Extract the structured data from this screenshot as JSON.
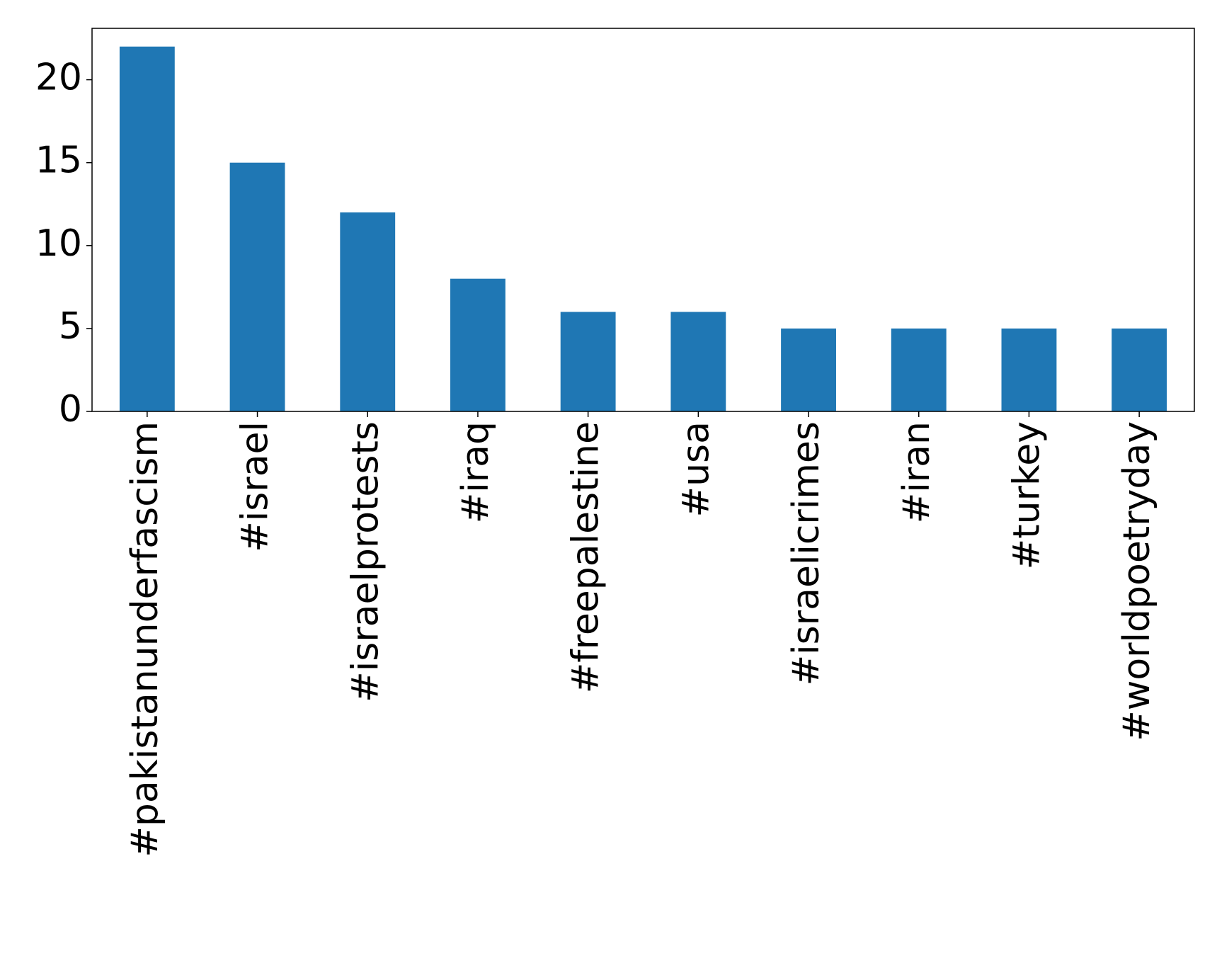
{
  "chart_data": {
    "type": "bar",
    "categories": [
      "#pakistanunderfascism",
      "#israel",
      "#israelprotests",
      "#iraq",
      "#freepalestine",
      "#usa",
      "#israelicrimes",
      "#iran",
      "#turkey",
      "#worldpoetryday"
    ],
    "values": [
      22,
      15,
      12,
      8,
      6,
      6,
      5,
      5,
      5,
      5
    ],
    "color": "#1f77b4",
    "ylim": [
      0,
      23.1
    ],
    "yticks": [
      0,
      5,
      10,
      15,
      20
    ],
    "grid": false
  }
}
